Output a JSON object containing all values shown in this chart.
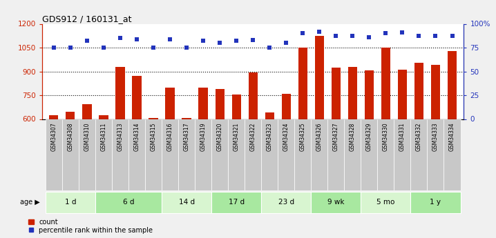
{
  "title": "GDS912 / 160131_at",
  "samples": [
    "GSM34307",
    "GSM34308",
    "GSM34310",
    "GSM34311",
    "GSM34313",
    "GSM34314",
    "GSM34315",
    "GSM34316",
    "GSM34317",
    "GSM34319",
    "GSM34320",
    "GSM34321",
    "GSM34322",
    "GSM34323",
    "GSM34324",
    "GSM34325",
    "GSM34326",
    "GSM34327",
    "GSM34328",
    "GSM34329",
    "GSM34330",
    "GSM34331",
    "GSM34332",
    "GSM34333",
    "GSM34334"
  ],
  "counts": [
    625,
    645,
    695,
    622,
    930,
    870,
    608,
    800,
    608,
    800,
    790,
    755,
    893,
    640,
    757,
    1050,
    1125,
    925,
    930,
    905,
    1050,
    912,
    955,
    940,
    1030
  ],
  "percentile_ranks": [
    75,
    75,
    82,
    75,
    85,
    84,
    75,
    84,
    75,
    82,
    80,
    82,
    83,
    75,
    80,
    90,
    92,
    87,
    87,
    86,
    90,
    91,
    87,
    87,
    87
  ],
  "age_groups": [
    {
      "label": "1 d",
      "start": 0,
      "end": 3
    },
    {
      "label": "6 d",
      "start": 3,
      "end": 7
    },
    {
      "label": "14 d",
      "start": 7,
      "end": 10
    },
    {
      "label": "17 d",
      "start": 10,
      "end": 13
    },
    {
      "label": "23 d",
      "start": 13,
      "end": 16
    },
    {
      "label": "9 wk",
      "start": 16,
      "end": 19
    },
    {
      "label": "5 mo",
      "start": 19,
      "end": 22
    },
    {
      "label": "1 y",
      "start": 22,
      "end": 25
    }
  ],
  "ylim_left": [
    600,
    1200
  ],
  "ylim_right": [
    0,
    100
  ],
  "yticks_left": [
    600,
    750,
    900,
    1050,
    1200
  ],
  "yticks_right": [
    0,
    25,
    50,
    75,
    100
  ],
  "ytick_labels_right": [
    "0",
    "25",
    "50",
    "75",
    "100%"
  ],
  "hlines": [
    750,
    900,
    1050
  ],
  "bar_color": "#cc2200",
  "scatter_color": "#2233bb",
  "bg_color_plot": "#ffffff",
  "age_colors": [
    "#d8f5d0",
    "#a8e8a0"
  ],
  "sample_bg": "#c8c8c8",
  "bar_width": 0.55,
  "fig_bg": "#f0f0f0"
}
